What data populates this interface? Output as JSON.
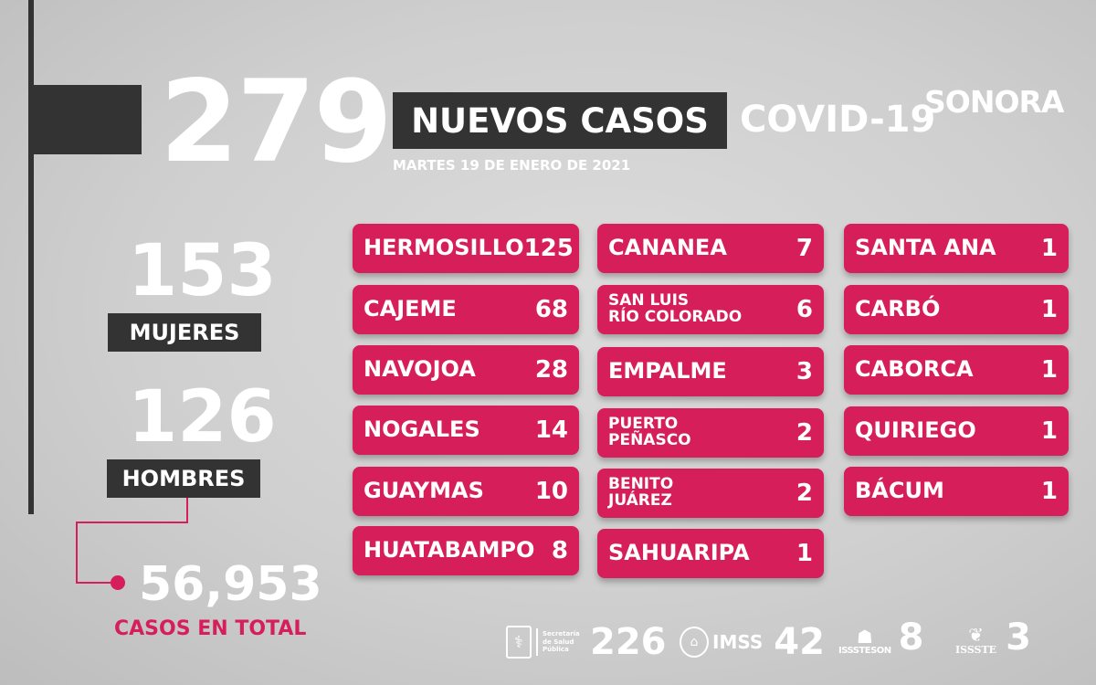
{
  "header": {
    "total_new": "279",
    "nuevos_label": "NUEVOS CASOS",
    "covid_label": "COVID-19",
    "brand": "SONORA",
    "date": "MARTES 19 DE ENERO DE 2021"
  },
  "gender": {
    "women_count": "153",
    "women_label": "MUJERES",
    "men_count": "126",
    "men_label": "HOMBRES"
  },
  "total": {
    "count": "56,953",
    "label": "CASOS EN TOTAL"
  },
  "municipalities": {
    "col1": [
      {
        "name": "HERMOSILLO",
        "count": "125"
      },
      {
        "name": "CAJEME",
        "count": "68"
      },
      {
        "name": "NAVOJOA",
        "count": "28"
      },
      {
        "name": "NOGALES",
        "count": "14"
      },
      {
        "name": "GUAYMAS",
        "count": "10"
      },
      {
        "name": "HUATABAMPO",
        "count": "8"
      }
    ],
    "col2": [
      {
        "name": "CANANEA",
        "count": "7"
      },
      {
        "name": "SAN LUIS",
        "name2": "RÍO COLORADO",
        "count": "6"
      },
      {
        "name": "EMPALME",
        "count": "3"
      },
      {
        "name": "PUERTO",
        "name2": "PEÑASCO",
        "count": "2"
      },
      {
        "name": "BENITO",
        "name2": "JUÁREZ",
        "count": "2"
      },
      {
        "name": "SAHUARIPA",
        "count": "1"
      }
    ],
    "col3": [
      {
        "name": "SANTA ANA",
        "count": "1"
      },
      {
        "name": "CARBÓ",
        "count": "1"
      },
      {
        "name": "CABORCA",
        "count": "1"
      },
      {
        "name": "QUIRIEGO",
        "count": "1"
      },
      {
        "name": "BÁCUM",
        "count": "1"
      }
    ]
  },
  "institutions": [
    {
      "label_line1": "Secretaría",
      "label_line2": "de Salud Pública",
      "count": "226",
      "icon": "health-secretariat-logo"
    },
    {
      "label": "IMSS",
      "count": "42",
      "icon": "imss-logo"
    },
    {
      "label": "ISSSTESON",
      "count": "8",
      "icon": "isssteson-logo"
    },
    {
      "label": "ISSSTE",
      "count": "3",
      "icon": "issste-logo"
    }
  ]
}
